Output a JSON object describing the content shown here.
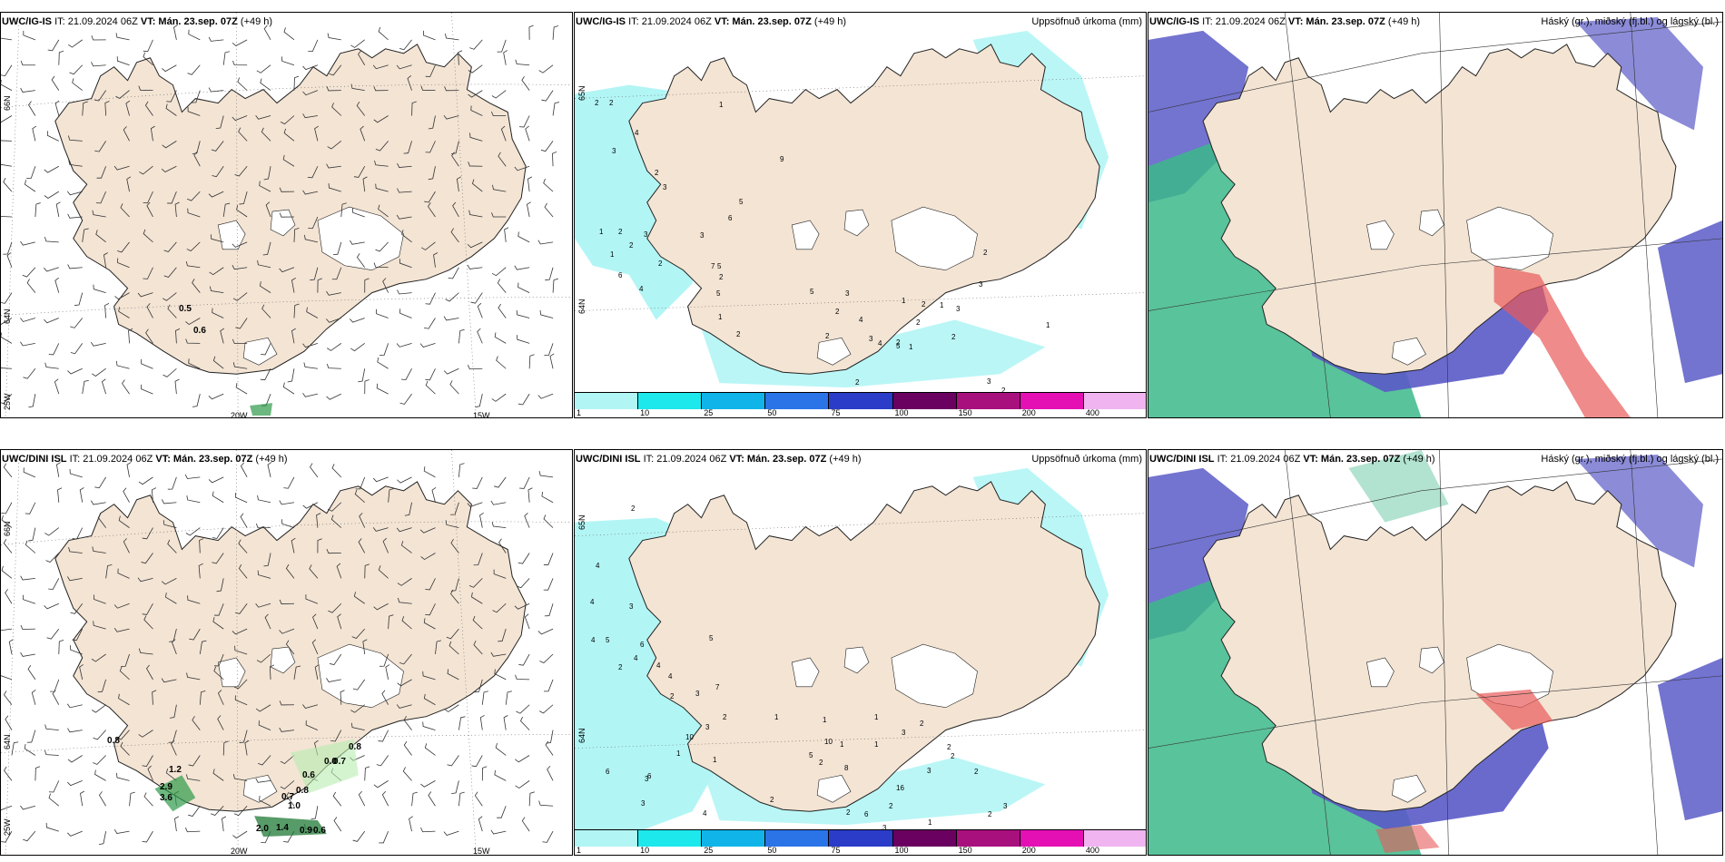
{
  "panels": [
    {
      "id": "tl",
      "model": "UWC/IG-IS",
      "it": "IT: 21.09.2024 06Z",
      "vt_label": "VT:",
      "vt": "Mán. 23.sep. 07Z",
      "lead": "(+49 h)",
      "right_title": "",
      "lat_labels": [
        "66N",
        "64N",
        "25W"
      ],
      "lon_labels": [
        "20W",
        "15W"
      ],
      "values": [
        "0.5",
        "0.6"
      ]
    },
    {
      "id": "tm",
      "model": "UWC/IG-IS",
      "it": "IT: 21.09.2024 06Z",
      "vt_label": "VT:",
      "vt": "Mán. 23.sep. 07Z",
      "lead": "(+49 h)",
      "right_title": "Uppsöfnuð úrkoma (mm)",
      "lat_labels": [
        "65N",
        "64N"
      ],
      "colorbar": [
        "1",
        "10",
        "25",
        "50",
        "75",
        "100",
        "150",
        "200",
        "400"
      ],
      "numbers": [
        "2",
        "2",
        "3",
        "1",
        "2",
        "4",
        "3",
        "1",
        "2",
        "3",
        "5",
        "9",
        "5",
        "6",
        "3",
        "1",
        "2",
        "2",
        "6",
        "4",
        "7",
        "5",
        "2",
        "1",
        "2",
        "2",
        "3",
        "4",
        "5",
        "2",
        "2",
        "1",
        "4",
        "2",
        "5",
        "3",
        "2",
        "2",
        "1",
        "13",
        "1",
        "3",
        "2",
        "2",
        "2",
        "1",
        "1",
        "3",
        "3"
      ]
    },
    {
      "id": "tr",
      "model": "UWC/IG-IS",
      "it": "IT: 21.09.2024 06Z",
      "vt_label": "VT:",
      "vt": "Mán. 23.sep. 07Z",
      "lead": "(+49 h)",
      "right_title": "Háský (gr.), miðský (fj.bl.) og lágský (bl.)"
    },
    {
      "id": "bl",
      "model": "UWC/DINI ISL",
      "it": "IT: 21.09.2024 06Z",
      "vt_label": "VT:",
      "vt": "Mán. 23.sep. 07Z",
      "lead": "(+49 h)",
      "right_title": "",
      "lat_labels": [
        "66N",
        "64N",
        "25W"
      ],
      "lon_labels": [
        "20W",
        "15W"
      ],
      "values": [
        "0.8",
        "1.2",
        "2.9",
        "3.6",
        "0.7",
        "1.0",
        "0.8",
        "0.6",
        "0.0",
        "0.7",
        "0.8",
        "2.0",
        "1.4",
        "0.9",
        "0.6"
      ]
    },
    {
      "id": "bm",
      "model": "UWC/DINI ISL",
      "it": "IT: 21.09.2024 06Z",
      "vt_label": "VT:",
      "vt": "Mán. 23.sep. 07Z",
      "lead": "(+49 h)",
      "right_title": "Uppsöfnuð úrkoma (mm)",
      "lat_labels": [
        "65N",
        "64N"
      ],
      "colorbar": [
        "1",
        "10",
        "25",
        "50",
        "75",
        "100",
        "150",
        "200",
        "400"
      ],
      "numbers": [
        "2",
        "4",
        "4",
        "5",
        "4",
        "3",
        "6",
        "4",
        "2",
        "4",
        "10",
        "3",
        "2",
        "3",
        "4",
        "7",
        "5",
        "3",
        "3",
        "6",
        "6",
        "1",
        "5",
        "2",
        "8",
        "10",
        "16",
        "3",
        "6",
        "2",
        "2",
        "2",
        "1",
        "3",
        "2",
        "2",
        "3",
        "4",
        "2",
        "1",
        "1",
        "1",
        "1",
        "1",
        "1",
        "3",
        "2",
        "2",
        "2",
        "3"
      ]
    },
    {
      "id": "br",
      "model": "UWC/DINI ISL",
      "it": "IT: 21.09.2024 06Z",
      "vt_label": "VT:",
      "vt": "Mán. 23.sep. 07Z",
      "lead": "(+49 h)",
      "right_title": "Háský (gr.), miðský (fj.bl.) og lágský (bl.)"
    }
  ],
  "colors": {
    "land": "#f3e4d4",
    "glacier": "#ffffff",
    "precip_light": "#b2f5f5",
    "cloud_low": "#5a5ac8",
    "cloud_mid": "#3cb88a",
    "cloud_high": "#e85a5a",
    "colorbar": [
      "#b2f5f5",
      "#1de8ec",
      "#10b4e8",
      "#2a74e8",
      "#2a3cc8",
      "#6a0060",
      "#a8107e",
      "#e410b4",
      "#f0b4f0"
    ]
  }
}
